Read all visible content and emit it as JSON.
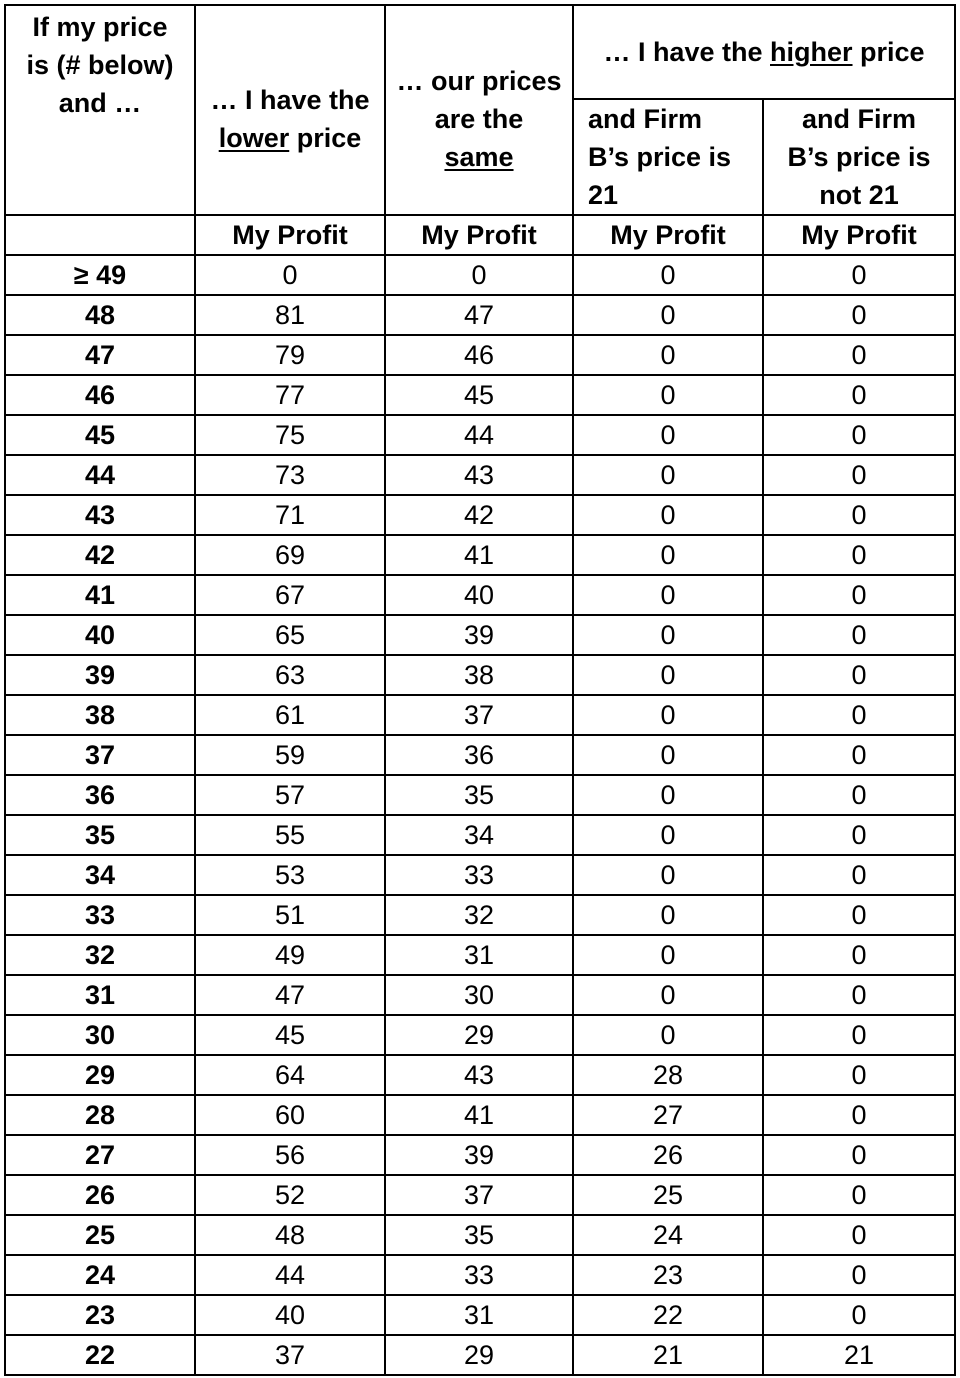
{
  "header": {
    "col1_lines": [
      "If my price",
      "is (# below)",
      "and …"
    ],
    "col2_prefix": "… I have the",
    "col2_emph": "lower",
    "col2_suffix": " price",
    "col3_line1": "… our prices",
    "col3_line2": "are the",
    "col3_emph": "same",
    "col45_prefix": "… I have the ",
    "col45_emph": "higher",
    "col45_suffix": " price",
    "col4_lines": [
      "and Firm",
      "B’s price is",
      "21"
    ],
    "col5_lines": [
      "and Firm",
      "B’s price is",
      "not 21"
    ]
  },
  "units_row": [
    "",
    "My Profit",
    "My Profit",
    "My Profit",
    "My Profit"
  ],
  "rows": [
    [
      "≥ 49",
      "0",
      "0",
      "0",
      "0"
    ],
    [
      "48",
      "81",
      "47",
      "0",
      "0"
    ],
    [
      "47",
      "79",
      "46",
      "0",
      "0"
    ],
    [
      "46",
      "77",
      "45",
      "0",
      "0"
    ],
    [
      "45",
      "75",
      "44",
      "0",
      "0"
    ],
    [
      "44",
      "73",
      "43",
      "0",
      "0"
    ],
    [
      "43",
      "71",
      "42",
      "0",
      "0"
    ],
    [
      "42",
      "69",
      "41",
      "0",
      "0"
    ],
    [
      "41",
      "67",
      "40",
      "0",
      "0"
    ],
    [
      "40",
      "65",
      "39",
      "0",
      "0"
    ],
    [
      "39",
      "63",
      "38",
      "0",
      "0"
    ],
    [
      "38",
      "61",
      "37",
      "0",
      "0"
    ],
    [
      "37",
      "59",
      "36",
      "0",
      "0"
    ],
    [
      "36",
      "57",
      "35",
      "0",
      "0"
    ],
    [
      "35",
      "55",
      "34",
      "0",
      "0"
    ],
    [
      "34",
      "53",
      "33",
      "0",
      "0"
    ],
    [
      "33",
      "51",
      "32",
      "0",
      "0"
    ],
    [
      "32",
      "49",
      "31",
      "0",
      "0"
    ],
    [
      "31",
      "47",
      "30",
      "0",
      "0"
    ],
    [
      "30",
      "45",
      "29",
      "0",
      "0"
    ],
    [
      "29",
      "64",
      "43",
      "28",
      "0"
    ],
    [
      "28",
      "60",
      "41",
      "27",
      "0"
    ],
    [
      "27",
      "56",
      "39",
      "26",
      "0"
    ],
    [
      "26",
      "52",
      "37",
      "25",
      "0"
    ],
    [
      "25",
      "48",
      "35",
      "24",
      "0"
    ],
    [
      "24",
      "44",
      "33",
      "23",
      "0"
    ],
    [
      "23",
      "40",
      "31",
      "22",
      "0"
    ],
    [
      "22",
      "37",
      "29",
      "21",
      "21"
    ]
  ]
}
